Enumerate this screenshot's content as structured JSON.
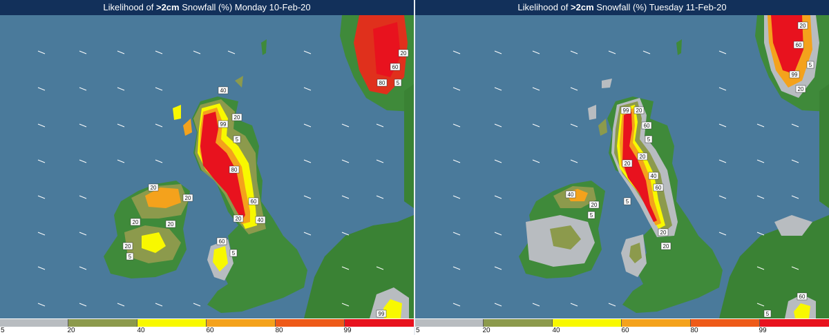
{
  "panels": [
    {
      "title_prefix": "Likelihood of ",
      "title_bold": ">2cm",
      "title_suffix": " Snowfall (%)   Monday 10-Feb-20",
      "contour_labels": [
        "40",
        "99",
        "20",
        "5",
        "80",
        "80",
        "60",
        "40",
        "20",
        "60",
        "20",
        "20",
        "5",
        "20",
        "20",
        "60",
        "5",
        "20",
        "20",
        "5",
        "99"
      ]
    },
    {
      "title_prefix": "Likelihood of ",
      "title_bold": ">2cm",
      "title_suffix": " Snowfall (%)   Tuesday 11-Feb-20",
      "contour_labels": [
        "20",
        "60",
        "99",
        "5",
        "20",
        "99",
        "20",
        "60",
        "5",
        "20",
        "20",
        "40",
        "20",
        "5",
        "40",
        "5",
        "60",
        "20",
        "60",
        "5",
        "20"
      ]
    }
  ],
  "legend": {
    "colors": [
      "#b8bcc0",
      "#8c9a4c",
      "#f8f800",
      "#f4a21c",
      "#ee5a18",
      "#e8121e"
    ],
    "ticks": [
      "5",
      "20",
      "40",
      "60",
      "80",
      "99"
    ]
  },
  "colors": {
    "sea": "#4a7a9b",
    "land": "#3f8a3a",
    "title_bg": "#12305a"
  }
}
